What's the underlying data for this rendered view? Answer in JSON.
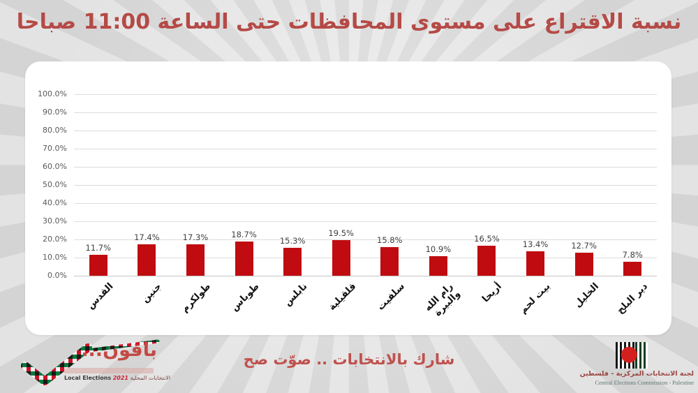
{
  "title": "نسبة الاقتراع على مستوى المحافظات حتى الساعة 11:00 صباحا",
  "colors": {
    "title_red": "#b54a46",
    "bar_red": "#c00c10",
    "slogan_red": "#c0504d",
    "gridline": "#dcdcdc",
    "background": "#e1e1e1"
  },
  "chart_data": {
    "type": "bar",
    "title": "نسبة الاقتراع على مستوى المحافظات حتى الساعة 11:00 صباحا",
    "categories": [
      "القدس",
      "جنين",
      "طولكرم",
      "طوباس",
      "نابلس",
      "قلقيلية",
      "سلفيت",
      "رام الله\nوالبيرة",
      "أريحا",
      "بيت لحم",
      "الخليل",
      "دير البلح"
    ],
    "values": [
      11.7,
      17.4,
      17.3,
      18.7,
      15.3,
      19.5,
      15.8,
      10.9,
      16.5,
      13.4,
      12.7,
      7.8
    ],
    "value_labels": [
      "11.7%",
      "17.4%",
      "17.3%",
      "18.7%",
      "15.3%",
      "19.5%",
      "15.8%",
      "10.9%",
      "16.5%",
      "13.4%",
      "12.7%",
      "7.8%"
    ],
    "yticks": [
      "0.0%",
      "10.0%",
      "20.0%",
      "30.0%",
      "40.0%",
      "50.0%",
      "60.0%",
      "70.0%",
      "80.0%",
      "90.0%",
      "100.0%"
    ],
    "ylim": [
      0,
      100
    ],
    "xlabel": "",
    "ylabel": "",
    "grid": true,
    "legend": false,
    "bar_color": "#c00c10"
  },
  "footer": {
    "left_logo": {
      "text": "باقون...",
      "sub_en": "Local Elections",
      "sub_year": "2021",
      "sub_ar": "الانتخابات المحلية"
    },
    "slogan": "شارك بالانتخابات .. صوّت صح",
    "right_logo": {
      "line_ar": "لجنة الانتخابات المركزية - فلسطين",
      "line_en": "Central Elections Commission - Palestine"
    }
  }
}
